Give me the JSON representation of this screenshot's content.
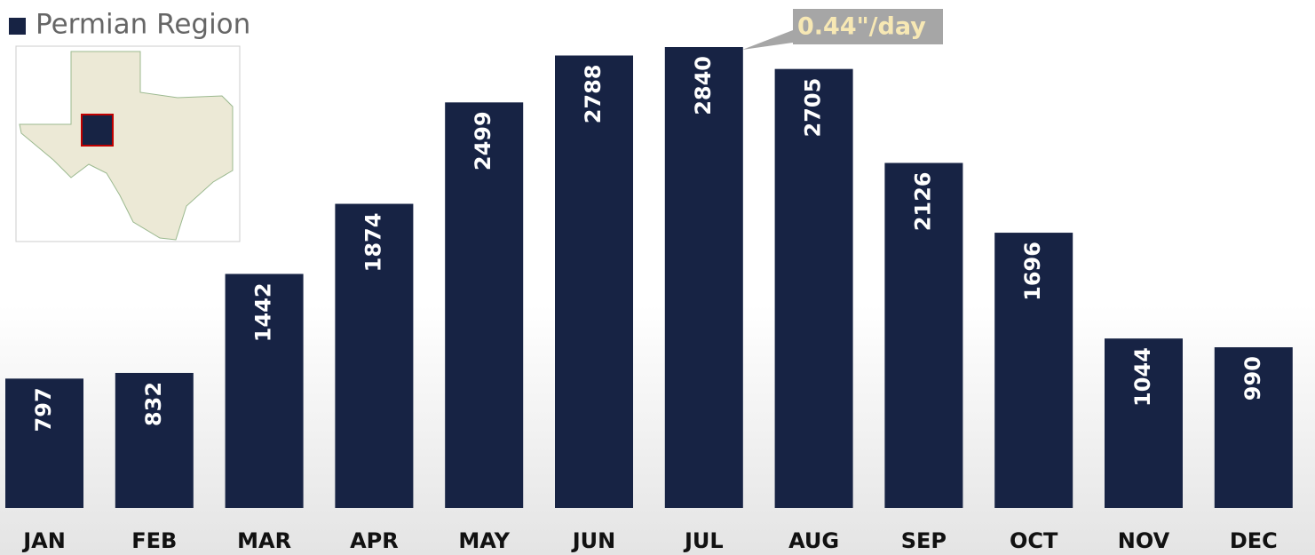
{
  "chart_data": {
    "type": "bar",
    "legend": "Permian Region",
    "annotation": "0.44\"/day",
    "categories": [
      "JAN",
      "FEB",
      "MAR",
      "APR",
      "MAY",
      "JUN",
      "JUL",
      "AUG",
      "SEP",
      "OCT",
      "NOV",
      "DEC"
    ],
    "values": [
      797,
      832,
      1442,
      1874,
      2499,
      2788,
      2840,
      2705,
      2126,
      1696,
      1044,
      990
    ],
    "color": "#172344"
  }
}
